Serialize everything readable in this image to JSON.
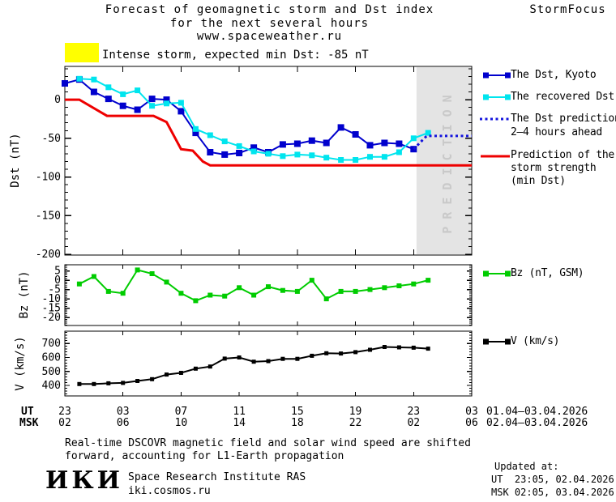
{
  "header": {
    "title_line1": "Forecast of geomagnetic storm and Dst index",
    "title_line2": "for the next several hours",
    "title_line3": "www.spaceweather.ru",
    "brand": "StormFocus"
  },
  "storm_banner": {
    "swatch_color": "#ffff00",
    "label": "Intense storm, expected min Dst: -85 nT"
  },
  "legend_dst": {
    "items": [
      {
        "label": "The Dst, Kyoto",
        "color": "#0000cd"
      },
      {
        "label": "The recovered Dst",
        "color": "#00e5ee"
      },
      {
        "label": "The Dst prediction",
        "label2": "2–4 hours ahead",
        "color": "#1212dd"
      },
      {
        "label": "Prediction of the",
        "label2": "storm strength",
        "label3": "(min Dst)",
        "color": "#ee0000"
      }
    ]
  },
  "legend_bz": {
    "label": "Bz (nT, GSM)",
    "color": "#00cc00"
  },
  "legend_v": {
    "label": "V (km/s)",
    "color": "#000000"
  },
  "x_axis": {
    "ut_label": "UT",
    "msk_label": "MSK",
    "tick_hours": [
      0,
      4,
      8,
      12,
      16,
      20,
      24,
      28
    ],
    "ut_ticks": [
      "23",
      "03",
      "07",
      "11",
      "15",
      "19",
      "23",
      "03"
    ],
    "msk_ticks": [
      "02",
      "06",
      "10",
      "14",
      "18",
      "22",
      "02",
      "06"
    ],
    "ut_date_range": "01.04–03.04.2026",
    "msk_date_range": "02.04–03.04.2026"
  },
  "chart_data": [
    {
      "id": "dst",
      "type": "line",
      "ylabel": "Dst (nT)",
      "xlim": [
        0,
        28
      ],
      "ylim": [
        -201,
        43
      ],
      "yticks": [
        {
          "v": 0,
          "label": "0"
        },
        {
          "v": -50,
          "label": "-50"
        },
        {
          "v": -100,
          "label": "-100"
        },
        {
          "v": -150,
          "label": "-150"
        },
        {
          "v": -200,
          "label": "-200"
        }
      ],
      "yminor": {
        "from": -200,
        "to": 40,
        "step": 10
      },
      "prediction_band": {
        "from_hour": 24.2,
        "to_hour": 28,
        "label": "PREDICTION",
        "color": "#e4e4e4",
        "text_color": "#c9c9c9"
      },
      "series": [
        {
          "name": "The Dst, Kyoto",
          "color": "#0000cd",
          "style": "solid",
          "width": 2,
          "marker": "square",
          "marker_size": 8,
          "points": [
            [
              0,
              21
            ],
            [
              1,
              26
            ],
            [
              2,
              10
            ],
            [
              3,
              1
            ],
            [
              4,
              -8
            ],
            [
              5,
              -13
            ],
            [
              6,
              1
            ],
            [
              7,
              0
            ],
            [
              8,
              -15
            ],
            [
              9,
              -43
            ],
            [
              10,
              -68
            ],
            [
              11,
              -71
            ],
            [
              12,
              -69
            ],
            [
              13,
              -62
            ],
            [
              14,
              -68
            ],
            [
              15,
              -58
            ],
            [
              16,
              -57
            ],
            [
              17,
              -53
            ],
            [
              18,
              -56
            ],
            [
              19,
              -36
            ],
            [
              20,
              -45
            ],
            [
              21,
              -59
            ],
            [
              22,
              -56
            ],
            [
              23,
              -57
            ],
            [
              24,
              -64
            ]
          ]
        },
        {
          "name": "The recovered Dst",
          "color": "#00e5ee",
          "style": "solid",
          "width": 2,
          "marker": "square",
          "marker_size": 7,
          "points": [
            [
              1,
              27
            ],
            [
              2,
              26
            ],
            [
              3,
              16
            ],
            [
              4,
              7
            ],
            [
              5,
              12
            ],
            [
              6,
              -8
            ],
            [
              7,
              -5
            ],
            [
              8,
              -4
            ],
            [
              9,
              -38
            ],
            [
              10,
              -46
            ],
            [
              11,
              -54
            ],
            [
              12,
              -60
            ],
            [
              13,
              -67
            ],
            [
              14,
              -70
            ],
            [
              15,
              -73
            ],
            [
              16,
              -71
            ],
            [
              17,
              -72
            ],
            [
              18,
              -75
            ],
            [
              19,
              -78
            ],
            [
              20,
              -78
            ],
            [
              21,
              -74
            ],
            [
              22,
              -74
            ],
            [
              23,
              -68
            ],
            [
              24,
              -50
            ],
            [
              25,
              -43
            ]
          ]
        },
        {
          "name": "The Dst prediction 2-4 hours ahead",
          "color": "#1212dd",
          "style": "dotted",
          "width": 3,
          "marker": "none",
          "points": [
            [
              24,
              -64
            ],
            [
              24.9,
              -47
            ],
            [
              28,
              -47
            ]
          ]
        },
        {
          "name": "Prediction of the storm strength (min Dst)",
          "color": "#ee0000",
          "style": "solid",
          "width": 3,
          "marker": "none",
          "points": [
            [
              0,
              0
            ],
            [
              1,
              0
            ],
            [
              2.9,
              -21
            ],
            [
              6.1,
              -21
            ],
            [
              7,
              -29
            ],
            [
              8,
              -64
            ],
            [
              8.8,
              -66
            ],
            [
              9.5,
              -80
            ],
            [
              10,
              -85
            ],
            [
              28,
              -85
            ]
          ]
        }
      ]
    },
    {
      "id": "bz",
      "type": "line",
      "ylabel": "Bz (nT)",
      "xlim": [
        0,
        28
      ],
      "ylim": [
        -24.3,
        8.3
      ],
      "yticks": [
        {
          "v": 5,
          "label": "5"
        },
        {
          "v": 0,
          "label": "0"
        },
        {
          "v": -5,
          "label": "-5"
        },
        {
          "v": -10,
          "label": "-10"
        },
        {
          "v": -15,
          "label": "-15"
        },
        {
          "v": -20,
          "label": "-20"
        }
      ],
      "yminor": {
        "from": -24,
        "to": 8,
        "step": 1
      },
      "series": [
        {
          "name": "Bz (nT, GSM)",
          "color": "#00cc00",
          "style": "solid",
          "width": 2,
          "marker": "square",
          "marker_size": 6,
          "points": [
            [
              1,
              -2
            ],
            [
              2,
              2
            ],
            [
              3,
              -6
            ],
            [
              4,
              -7
            ],
            [
              5,
              5.5
            ],
            [
              6,
              3.5
            ],
            [
              7,
              -1
            ],
            [
              8,
              -7
            ],
            [
              9,
              -11
            ],
            [
              10,
              -8
            ],
            [
              11,
              -8.5
            ],
            [
              12,
              -4
            ],
            [
              13,
              -8
            ],
            [
              14,
              -3.5
            ],
            [
              15,
              -5.5
            ],
            [
              16,
              -6
            ],
            [
              17,
              0
            ],
            [
              18,
              -10
            ],
            [
              19,
              -6
            ],
            [
              20,
              -6
            ],
            [
              21,
              -5
            ],
            [
              22,
              -4
            ],
            [
              23,
              -3
            ],
            [
              24,
              -2
            ],
            [
              25,
              0
            ]
          ]
        }
      ]
    },
    {
      "id": "v",
      "type": "line",
      "ylabel": "V (km/s)",
      "xlim": [
        0,
        28
      ],
      "ylim": [
        325,
        788
      ],
      "yticks": [
        {
          "v": 700,
          "label": "700"
        },
        {
          "v": 600,
          "label": "600"
        },
        {
          "v": 500,
          "label": "500"
        },
        {
          "v": 400,
          "label": "400"
        }
      ],
      "yminor": {
        "from": 340,
        "to": 780,
        "step": 20
      },
      "series": [
        {
          "name": "V (km/s)",
          "color": "#000000",
          "style": "solid",
          "width": 2,
          "marker": "square",
          "marker_size": 5,
          "points": [
            [
              1,
              410
            ],
            [
              2,
              410
            ],
            [
              3,
              415
            ],
            [
              4,
              418
            ],
            [
              5,
              432
            ],
            [
              6,
              445
            ],
            [
              7,
              478
            ],
            [
              8,
              490
            ],
            [
              9,
              520
            ],
            [
              10,
              535
            ],
            [
              11,
              592
            ],
            [
              12,
              600
            ],
            [
              13,
              570
            ],
            [
              14,
              574
            ],
            [
              15,
              590
            ],
            [
              16,
              590
            ],
            [
              17,
              612
            ],
            [
              18,
              630
            ],
            [
              19,
              628
            ],
            [
              20,
              638
            ],
            [
              21,
              655
            ],
            [
              22,
              675
            ],
            [
              23,
              672
            ],
            [
              24,
              670
            ],
            [
              25,
              663
            ]
          ]
        }
      ]
    }
  ],
  "footer": {
    "note_line1": "Real-time DSCOVR magnetic field and solar wind speed are shifted",
    "note_line2": "forward, accounting for L1-Earth propagation",
    "logo_text": "ИКИ",
    "institute": "Space Research Institute RAS",
    "site": "iki.cosmos.ru",
    "updated_label": "Updated at:",
    "updated_ut": "UT  23:05, 02.04.2026",
    "updated_msk": "MSK 02:05, 03.04.2026"
  }
}
